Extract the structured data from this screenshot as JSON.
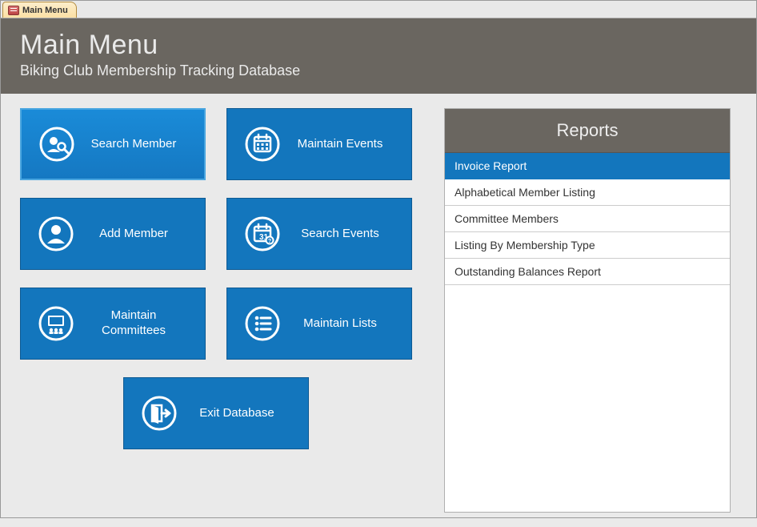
{
  "colors": {
    "tile_bg": "#1376bd",
    "tile_border": "#0e5a93",
    "header_bg": "#6a6660",
    "page_bg": "#eaeaea"
  },
  "tab": {
    "label": "Main Menu"
  },
  "header": {
    "title": "Main Menu",
    "subtitle": "Biking Club Membership Tracking Database"
  },
  "tiles": {
    "search_member": {
      "label": "Search Member"
    },
    "maintain_events": {
      "label": "Maintain Events"
    },
    "add_member": {
      "label": "Add Member"
    },
    "search_events": {
      "label": "Search Events"
    },
    "maintain_committees": {
      "label": "Maintain\nCommittees"
    },
    "maintain_lists": {
      "label": "Maintain Lists"
    },
    "exit_database": {
      "label": "Exit Database"
    }
  },
  "reports": {
    "header": "Reports",
    "items": [
      {
        "label": "Invoice Report",
        "selected": true
      },
      {
        "label": "Alphabetical  Member Listing",
        "selected": false
      },
      {
        "label": "Committee Members",
        "selected": false
      },
      {
        "label": "Listing By Membership Type",
        "selected": false
      },
      {
        "label": "Outstanding Balances Report",
        "selected": false
      }
    ]
  }
}
